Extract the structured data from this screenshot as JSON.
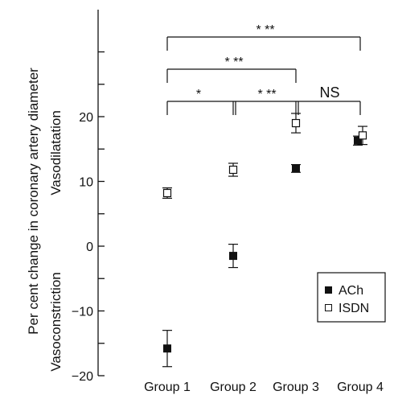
{
  "chart_data": {
    "type": "scatter",
    "ylabel": "Per cent change in coronary artery diameter",
    "ylabel_upper": "Vasodilatation",
    "ylabel_lower": "Vasoconstriction",
    "categories": [
      "Group 1",
      "Group 2",
      "Group 3",
      "Group 4"
    ],
    "ylim": [
      -20,
      30
    ],
    "yticks": [
      -20,
      -10,
      0,
      10,
      20
    ],
    "ytick_labels": [
      "−20",
      "−10",
      "0",
      "10",
      "20"
    ],
    "series": [
      {
        "name": "ACh",
        "marker": "filled-square",
        "values": [
          -15.8,
          -1.5,
          12.0,
          16.3
        ],
        "error": [
          2.8,
          1.8,
          0.6,
          0.7
        ]
      },
      {
        "name": "ISDN",
        "marker": "open-square",
        "values": [
          8.2,
          11.8,
          19.0,
          17.1
        ],
        "error": [
          0.8,
          1.0,
          1.5,
          1.4
        ]
      }
    ],
    "legend": {
      "position": "bottom-right",
      "entries": [
        "ACh",
        "ISDN"
      ]
    },
    "significance": [
      {
        "from": "Group 1",
        "to": "Group 4",
        "label": "*  **"
      },
      {
        "from": "Group 1",
        "to": "Group 3",
        "label": "*  **"
      },
      {
        "from": "Group 1",
        "to": "Group 2",
        "label": "*"
      },
      {
        "from": "Group 2",
        "to": "Group 3",
        "label": "*  **"
      },
      {
        "from": "Group 3",
        "to": "Group 4",
        "label": "NS"
      }
    ]
  }
}
